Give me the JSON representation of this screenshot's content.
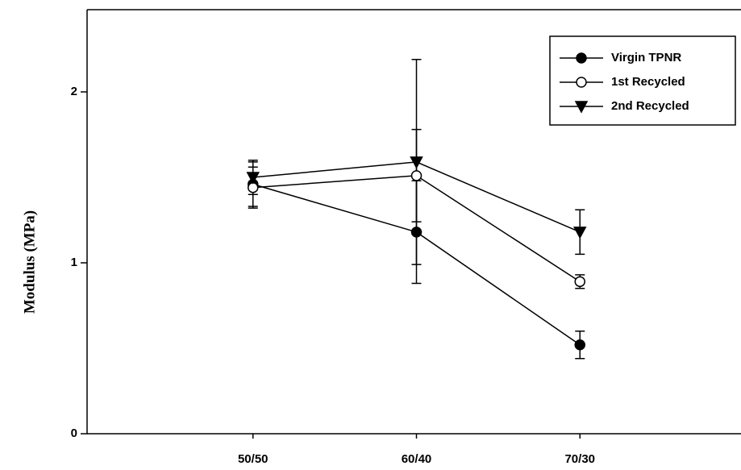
{
  "chart_data": {
    "type": "line",
    "y_label": "Modulus (MPa)",
    "categories": [
      "50/50",
      "60/40",
      "70/30"
    ],
    "ylim": [
      0,
      2.5
    ],
    "yticks": [
      0,
      1,
      2
    ],
    "legend": "upper right",
    "series": [
      {
        "name": "Virgin TPNR",
        "color": "#000000",
        "marker": "filled-circle",
        "values": [
          1.46,
          1.18,
          0.52
        ],
        "errors": [
          0.13,
          0.3,
          0.08
        ]
      },
      {
        "name": "1st Recycled",
        "color": "#000000",
        "marker": "open-circle",
        "values": [
          1.44,
          1.51,
          0.89
        ],
        "errors": [
          0.12,
          0.27,
          0.04
        ]
      },
      {
        "name": "2nd Recycled",
        "color": "#000000",
        "marker": "filled-triangle-down",
        "values": [
          1.5,
          1.59,
          1.18
        ],
        "errors": [
          0.1,
          0.6,
          0.13
        ]
      }
    ]
  }
}
